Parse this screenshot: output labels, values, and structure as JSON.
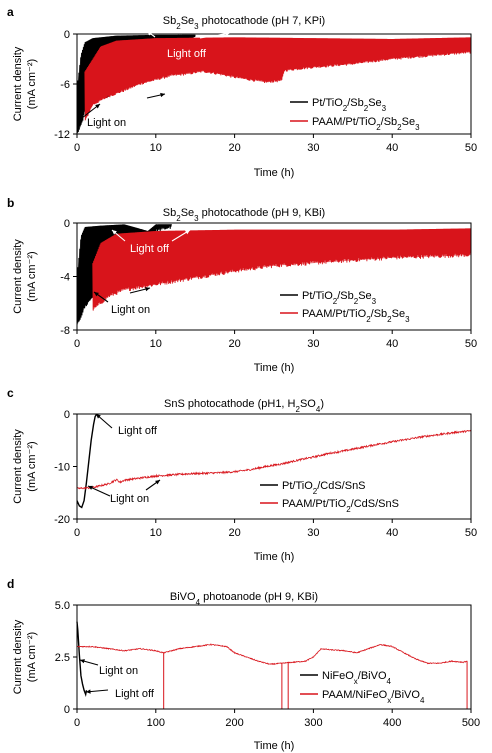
{
  "colors": {
    "black": "#000000",
    "red": "#d8141b"
  },
  "chart_data": [
    {
      "panel": "a",
      "type": "line",
      "title_parts": [
        [
          "Sb",
          ""
        ],
        [
          "2",
          "sub"
        ],
        [
          "Se",
          ""
        ],
        [
          "3",
          "sub"
        ],
        [
          " photocathode (pH 7, KPi)",
          ""
        ]
      ],
      "xlabel": "Time (h)",
      "ylabel": [
        "Current density",
        "(mA cm⁻²)"
      ],
      "xlim": [
        0,
        50
      ],
      "ylim": [
        -12,
        0
      ],
      "xticks": [
        "0",
        "10",
        "20",
        "30",
        "40",
        "50"
      ],
      "yticks": [
        "0",
        "-6",
        "-12"
      ],
      "ytick_values": [
        0,
        -6,
        -12
      ],
      "annotations": [
        "Light off",
        "Light on"
      ],
      "series": [
        {
          "name_parts": [
            [
              "Pt/TiO",
              ""
            ],
            [
              "2",
              "sub"
            ],
            [
              "/Sb",
              ""
            ],
            [
              "2",
              "sub"
            ],
            [
              "Se",
              ""
            ],
            [
              "3",
              "sub"
            ]
          ],
          "color": "black",
          "x_end": 15,
          "upper": [
            [
              0,
              -6.5
            ],
            [
              0.5,
              -2.5
            ],
            [
              1,
              -1
            ],
            [
              2,
              -0.5
            ],
            [
              5,
              -0.2
            ],
            [
              10,
              -0.1
            ],
            [
              15,
              -0.1
            ]
          ],
          "lower": [
            [
              0,
              -12
            ],
            [
              0.3,
              -11.5
            ],
            [
              0.7,
              -10.5
            ],
            [
              1,
              -9.3
            ],
            [
              1.5,
              -8.8
            ],
            [
              2,
              -8.2
            ],
            [
              3,
              -7.8
            ],
            [
              4,
              -7.5
            ],
            [
              5,
              -7
            ],
            [
              6,
              -6.5
            ],
            [
              7,
              -5.5
            ],
            [
              8,
              -4.5
            ],
            [
              10,
              -3
            ],
            [
              12,
              -2
            ],
            [
              14,
              -1
            ],
            [
              15,
              -0.3
            ]
          ]
        },
        {
          "name_parts": [
            [
              "PAAM/Pt/TiO",
              ""
            ],
            [
              "2",
              "sub"
            ],
            [
              "/Sb",
              ""
            ],
            [
              "2",
              "sub"
            ],
            [
              "Se",
              ""
            ],
            [
              "3",
              "sub"
            ]
          ],
          "color": "red",
          "x_end": 50,
          "upper": [
            [
              1,
              -4.5
            ],
            [
              3,
              -1.5
            ],
            [
              5,
              -0.8
            ],
            [
              10,
              -0.5
            ],
            [
              20,
              -0.4
            ],
            [
              30,
              -0.5
            ],
            [
              40,
              -0.6
            ],
            [
              50,
              -0.4
            ]
          ],
          "lower": [
            [
              1,
              -10.5
            ],
            [
              2,
              -8.5
            ],
            [
              4,
              -7.5
            ],
            [
              6,
              -6.8
            ],
            [
              8,
              -6
            ],
            [
              10,
              -5.5
            ],
            [
              12,
              -5
            ],
            [
              14,
              -4.8
            ],
            [
              16,
              -4.5
            ],
            [
              18,
              -4.8
            ],
            [
              20,
              -5.2
            ],
            [
              22,
              -5.5
            ],
            [
              24,
              -5.8
            ],
            [
              26,
              -5.6
            ],
            [
              26.3,
              -4.4
            ],
            [
              28,
              -4.2
            ],
            [
              30,
              -4
            ],
            [
              35,
              -3.6
            ],
            [
              40,
              -3
            ],
            [
              45,
              -2.6
            ],
            [
              50,
              -2.2
            ]
          ]
        }
      ]
    },
    {
      "panel": "b",
      "type": "line",
      "title_parts": [
        [
          "Sb",
          ""
        ],
        [
          "2",
          "sub"
        ],
        [
          "Se",
          ""
        ],
        [
          "3",
          "sub"
        ],
        [
          " photocathode (pH 9, KBi)",
          ""
        ]
      ],
      "xlabel": "Time (h)",
      "ylabel": [
        "Current density",
        "(mA cm⁻²)"
      ],
      "xlim": [
        0,
        50
      ],
      "ylim": [
        -8,
        0
      ],
      "xticks": [
        "0",
        "10",
        "20",
        "30",
        "40",
        "50"
      ],
      "yticks": [
        "0",
        "-4",
        "-8"
      ],
      "ytick_values": [
        0,
        -4,
        -8
      ],
      "annotations": [
        "Light off",
        "Light on"
      ],
      "series": [
        {
          "name_parts": [
            [
              "Pt/TiO",
              ""
            ],
            [
              "2",
              "sub"
            ],
            [
              "/Sb",
              ""
            ],
            [
              "2",
              "sub"
            ],
            [
              "Se",
              ""
            ],
            [
              "3",
              "sub"
            ]
          ],
          "color": "black",
          "x_end": 12,
          "upper": [
            [
              0,
              -4
            ],
            [
              0.5,
              -1
            ],
            [
              1,
              -0.3
            ],
            [
              3,
              -0.2
            ],
            [
              6,
              -0.1
            ],
            [
              9,
              -0.6
            ],
            [
              10,
              -0.1
            ],
            [
              12,
              -0.1
            ]
          ],
          "lower": [
            [
              0,
              -7.7
            ],
            [
              0.5,
              -7
            ],
            [
              1,
              -6.3
            ],
            [
              2,
              -5.5
            ],
            [
              3,
              -5
            ],
            [
              4,
              -4.5
            ],
            [
              5,
              -3.5
            ],
            [
              6,
              -2
            ],
            [
              8,
              -1
            ],
            [
              10,
              -0.6
            ],
            [
              12,
              -0.3
            ]
          ]
        },
        {
          "name_parts": [
            [
              "PAAM/Pt/TiO",
              ""
            ],
            [
              "2",
              "sub"
            ],
            [
              "/Sb",
              ""
            ],
            [
              "2",
              "sub"
            ],
            [
              "Se",
              ""
            ],
            [
              "3",
              "sub"
            ]
          ],
          "color": "red",
          "x_end": 50,
          "upper": [
            [
              2,
              -3
            ],
            [
              3,
              -1.5
            ],
            [
              5,
              -0.8
            ],
            [
              10,
              -0.6
            ],
            [
              20,
              -0.5
            ],
            [
              30,
              -0.5
            ],
            [
              40,
              -0.5
            ],
            [
              50,
              -0.4
            ]
          ],
          "lower": [
            [
              2,
              -6.5
            ],
            [
              3,
              -6
            ],
            [
              4,
              -5.5
            ],
            [
              6,
              -5
            ],
            [
              8,
              -4.8
            ],
            [
              10,
              -4.6
            ],
            [
              12,
              -4.4
            ],
            [
              14,
              -4.2
            ],
            [
              16,
              -4
            ],
            [
              20,
              -3.6
            ],
            [
              25,
              -3.2
            ],
            [
              30,
              -3
            ],
            [
              35,
              -2.8
            ],
            [
              40,
              -2.6
            ],
            [
              45,
              -2.5
            ],
            [
              50,
              -2.4
            ]
          ]
        }
      ]
    },
    {
      "panel": "c",
      "type": "line",
      "title_parts": [
        [
          "SnS photocathode (pH1, H",
          ""
        ],
        [
          "2",
          "sub"
        ],
        [
          "SO",
          ""
        ],
        [
          "4",
          "sub"
        ],
        [
          ")",
          ""
        ]
      ],
      "xlabel": "Time (h)",
      "ylabel": [
        "Current density",
        "(mA cm⁻²)"
      ],
      "xlim": [
        0,
        50
      ],
      "ylim": [
        -20,
        0
      ],
      "xticks": [
        "0",
        "10",
        "20",
        "30",
        "40",
        "50"
      ],
      "yticks": [
        "0",
        "-10",
        "-20"
      ],
      "ytick_values": [
        0,
        -10,
        -20
      ],
      "annotations": [
        "Light off",
        "Light on"
      ],
      "series": [
        {
          "name_parts": [
            [
              "Pt/TiO",
              ""
            ],
            [
              "2",
              "sub"
            ],
            [
              "/CdS/SnS",
              ""
            ]
          ],
          "color": "black",
          "points": [
            [
              0,
              -16.5
            ],
            [
              0.3,
              -17.5
            ],
            [
              0.6,
              -17.8
            ],
            [
              0.9,
              -16.5
            ],
            [
              1.2,
              -13
            ],
            [
              1.5,
              -9
            ],
            [
              1.8,
              -5
            ],
            [
              2.1,
              -2
            ],
            [
              2.3,
              -0.5
            ],
            [
              2.5,
              0
            ]
          ]
        },
        {
          "name_parts": [
            [
              "PAAM/Pt/TiO",
              ""
            ],
            [
              "2",
              "sub"
            ],
            [
              "/CdS/SnS",
              ""
            ]
          ],
          "color": "red",
          "points": [
            [
              0,
              -14.2
            ],
            [
              2,
              -14
            ],
            [
              4,
              -13.3
            ],
            [
              5,
              -12.5
            ],
            [
              5.5,
              -13
            ],
            [
              6,
              -12.6
            ],
            [
              8,
              -12.2
            ],
            [
              10,
              -11.8
            ],
            [
              12,
              -11.6
            ],
            [
              14,
              -11.4
            ],
            [
              16,
              -11.3
            ],
            [
              18,
              -11.2
            ],
            [
              20,
              -11
            ],
            [
              22,
              -10.6
            ],
            [
              24,
              -10
            ],
            [
              26,
              -9.5
            ],
            [
              28,
              -8.8
            ],
            [
              30,
              -8.2
            ],
            [
              32,
              -7.5
            ],
            [
              34,
              -7
            ],
            [
              36,
              -6.4
            ],
            [
              38,
              -5.8
            ],
            [
              40,
              -5.3
            ],
            [
              42,
              -4.8
            ],
            [
              44,
              -4.3
            ],
            [
              46,
              -3.9
            ],
            [
              48,
              -3.5
            ],
            [
              50,
              -3.2
            ]
          ],
          "noise": 0.35
        }
      ]
    },
    {
      "panel": "d",
      "type": "line",
      "title_parts": [
        [
          "BiVO",
          ""
        ],
        [
          "4",
          "sub"
        ],
        [
          " photoanode (pH 9, KBi)",
          ""
        ]
      ],
      "xlabel": "Time (h)",
      "ylabel": [
        "Current density",
        "(mA cm⁻²)"
      ],
      "xlim": [
        0,
        500
      ],
      "ylim": [
        0,
        5
      ],
      "xticks": [
        "0",
        "100",
        "200",
        "300",
        "400",
        "500"
      ],
      "yticks": [
        "5.0",
        "2.5",
        "0"
      ],
      "ytick_values": [
        5,
        2.5,
        0
      ],
      "annotations": [
        "Light on",
        "Light off"
      ],
      "series": [
        {
          "name_parts": [
            [
              "NiFeO",
              ""
            ],
            [
              "x",
              "sub"
            ],
            [
              "/BiVO",
              ""
            ],
            [
              "4",
              "sub"
            ]
          ],
          "color": "black",
          "points": [
            [
              0,
              4.2
            ],
            [
              1,
              3.8
            ],
            [
              2,
              3.2
            ],
            [
              3,
              2.6
            ],
            [
              4,
              2.1
            ],
            [
              5,
              1.6
            ],
            [
              7,
              1.2
            ],
            [
              9,
              0.9
            ],
            [
              11,
              0.7
            ],
            [
              12,
              0.9
            ]
          ]
        },
        {
          "name_parts": [
            [
              "PAAM/NiFeO",
              ""
            ],
            [
              "x",
              "sub"
            ],
            [
              "/BiVO",
              ""
            ],
            [
              "4",
              "sub"
            ]
          ],
          "color": "red",
          "points": [
            [
              0,
              3.0
            ],
            [
              20,
              3.0
            ],
            [
              40,
              2.9
            ],
            [
              60,
              2.8
            ],
            [
              80,
              2.9
            ],
            [
              100,
              2.8
            ],
            [
              110,
              2.7
            ],
            [
              130,
              2.9
            ],
            [
              150,
              3.0
            ],
            [
              170,
              3.1
            ],
            [
              190,
              3.0
            ],
            [
              200,
              2.7
            ],
            [
              215,
              2.5
            ],
            [
              230,
              2.3
            ],
            [
              245,
              2.15
            ],
            [
              260,
              2.2
            ],
            [
              275,
              2.25
            ],
            [
              290,
              2.3
            ],
            [
              300,
              2.5
            ],
            [
              310,
              2.9
            ],
            [
              320,
              2.85
            ],
            [
              340,
              2.8
            ],
            [
              355,
              2.7
            ],
            [
              370,
              2.9
            ],
            [
              385,
              3.1
            ],
            [
              400,
              3.0
            ],
            [
              415,
              2.7
            ],
            [
              430,
              2.4
            ],
            [
              445,
              2.2
            ],
            [
              460,
              2.2
            ],
            [
              475,
              2.3
            ],
            [
              490,
              2.25
            ],
            [
              495,
              2.3
            ]
          ],
          "noise": 0.18,
          "drops": [
            110,
            260,
            268,
            495
          ]
        }
      ]
    }
  ]
}
